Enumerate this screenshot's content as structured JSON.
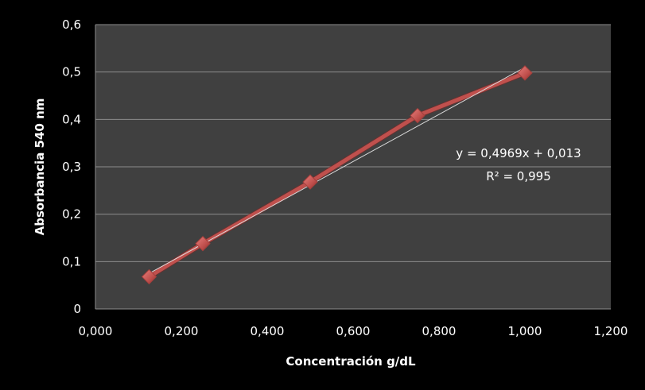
{
  "chart_data": {
    "type": "line",
    "xlabel": "Concentración g/dL",
    "ylabel": "Absorbancia  540 nm",
    "xlim": [
      0,
      1.2
    ],
    "ylim": [
      0,
      0.6
    ],
    "x_ticks": [
      "0,000",
      "0,200",
      "0,400",
      "0,600",
      "0,800",
      "1,000",
      "1,200"
    ],
    "y_ticks": [
      "0",
      "0,1",
      "0,2",
      "0,3",
      "0,4",
      "0,5",
      "0,6"
    ],
    "grid": true,
    "series": [
      {
        "x": [
          0.125,
          0.25,
          0.5,
          0.75,
          1.0
        ],
        "y": [
          0.068,
          0.138,
          0.268,
          0.408,
          0.498
        ]
      }
    ],
    "trendline": {
      "type": "linear",
      "slope": 0.4969,
      "intercept": 0.013,
      "equation": "y = 0,4969x + 0,013",
      "r_squared": "R² = 0,995"
    },
    "colors": {
      "background": "#000000",
      "plot_area": "#404040",
      "gridline": "#8c8c8c",
      "series_line": "#c0504d",
      "marker": "#c0504d",
      "trendline": "#d9d9d9",
      "text": "#ffffff"
    }
  }
}
